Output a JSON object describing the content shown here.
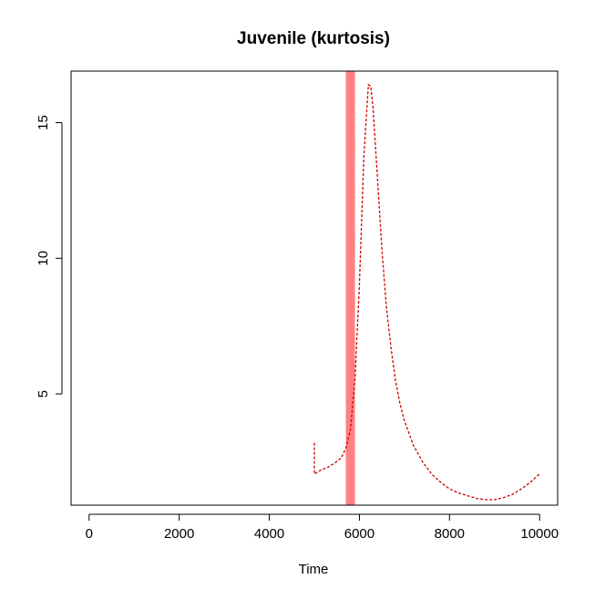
{
  "chart_data": {
    "type": "line",
    "title": "Juvenile (kurtosis)",
    "xlabel": "Time",
    "ylabel": "",
    "xlim": [
      -400,
      10400
    ],
    "ylim": [
      0.9,
      16.9
    ],
    "xticks": [
      0,
      2000,
      4000,
      6000,
      8000,
      10000
    ],
    "yticks": [
      5,
      10,
      15
    ],
    "grid": false,
    "legend": "none",
    "band": {
      "x": 5800,
      "color": "#FF8080"
    },
    "series": [
      {
        "color": "#CC0000",
        "style": "dashed",
        "points": [
          [
            5000,
            3.2
          ],
          [
            5000,
            2.05
          ],
          [
            5150,
            2.2
          ],
          [
            5300,
            2.3
          ],
          [
            5450,
            2.45
          ],
          [
            5600,
            2.65
          ],
          [
            5700,
            3.0
          ],
          [
            5800,
            3.7
          ],
          [
            5900,
            5.5
          ],
          [
            6000,
            9.0
          ],
          [
            6100,
            13.8
          ],
          [
            6200,
            16.4
          ],
          [
            6250,
            16.35
          ],
          [
            6300,
            15.6
          ],
          [
            6400,
            13.0
          ],
          [
            6500,
            10.3
          ],
          [
            6600,
            8.2
          ],
          [
            6700,
            6.7
          ],
          [
            6800,
            5.5
          ],
          [
            6900,
            4.65
          ],
          [
            7000,
            4.0
          ],
          [
            7200,
            3.1
          ],
          [
            7400,
            2.5
          ],
          [
            7600,
            2.05
          ],
          [
            7800,
            1.75
          ],
          [
            8000,
            1.5
          ],
          [
            8200,
            1.35
          ],
          [
            8400,
            1.25
          ],
          [
            8600,
            1.15
          ],
          [
            8800,
            1.1
          ],
          [
            9000,
            1.1
          ],
          [
            9200,
            1.18
          ],
          [
            9400,
            1.3
          ],
          [
            9600,
            1.5
          ],
          [
            9800,
            1.75
          ],
          [
            10000,
            2.05
          ]
        ]
      }
    ]
  }
}
